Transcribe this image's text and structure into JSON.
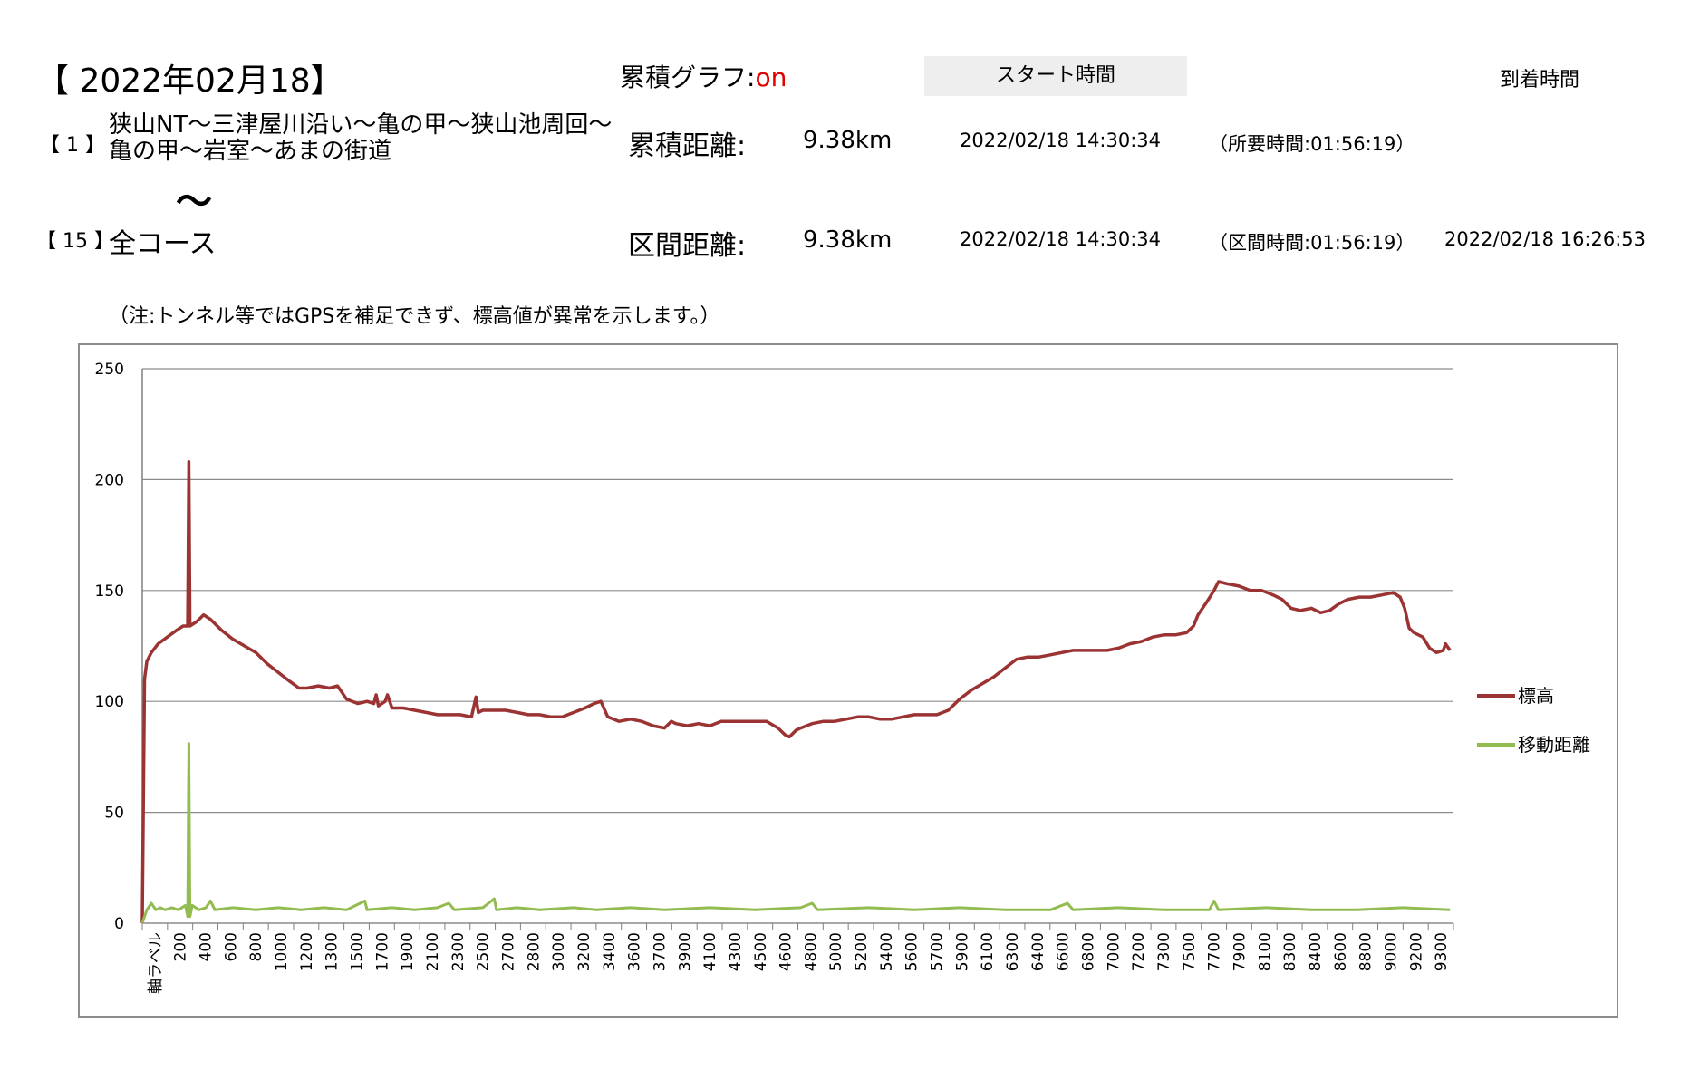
{
  "header": {
    "date_title": "【 2022年02月18】",
    "cumulative_graph_label": "累積グラフ:",
    "cumulative_graph_value": "on",
    "start_time_label": "スタート時間",
    "arrival_time_label": "到着時間"
  },
  "course_first": {
    "index": "【 1 】",
    "name": "狭山NT～三津屋川沿い～亀の甲～狭山池周回～亀の甲～岩室～あまの街道",
    "distance_label": "累積距離:",
    "distance_value": "9.38km",
    "start_time": "2022/02/18 14:30:34",
    "duration": "（所要時間:01:56:19）"
  },
  "separator": "～",
  "course_last": {
    "index": "【 15 】",
    "name": "全コース",
    "distance_label": "区間距離:",
    "distance_value": "9.38km",
    "start_time": "2022/02/18 14:30:34",
    "duration": "（区間時間:01:56:19）",
    "arrival_time": "2022/02/18 16:26:53"
  },
  "note": "（注:トンネル等ではGPSを補足できず、標高値が異常を示します。）",
  "colors": {
    "elevation": "#9b3333",
    "distance": "#92bb50",
    "grid": "#8c8c8c",
    "axis": "#7f7f7f"
  },
  "chart_data": {
    "type": "line",
    "ylim": [
      0,
      250
    ],
    "yticks": [
      0,
      50,
      100,
      150,
      200,
      250
    ],
    "grid": true,
    "legend_position": "right",
    "x_first_label": "軸ラベル",
    "categories": [
      "200",
      "400",
      "600",
      "800",
      "1000",
      "1200",
      "1300",
      "1500",
      "1700",
      "1900",
      "2100",
      "2300",
      "2500",
      "2700",
      "2800",
      "3000",
      "3200",
      "3400",
      "3600",
      "3700",
      "3900",
      "4100",
      "4300",
      "4500",
      "4600",
      "4800",
      "5000",
      "5200",
      "5400",
      "5600",
      "5700",
      "5900",
      "6100",
      "6300",
      "6400",
      "6600",
      "6800",
      "7000",
      "7200",
      "7300",
      "7500",
      "7700",
      "7900",
      "8100",
      "8300",
      "8400",
      "8600",
      "8800",
      "9000",
      "9200",
      "9300"
    ],
    "series": [
      {
        "name": "標高",
        "points": [
          [
            0,
            0
          ],
          [
            2,
            110
          ],
          [
            4,
            118
          ],
          [
            8,
            122
          ],
          [
            14,
            126
          ],
          [
            22,
            129
          ],
          [
            30,
            132
          ],
          [
            36,
            134
          ],
          [
            40,
            134
          ],
          [
            41,
            208
          ],
          [
            42,
            134
          ],
          [
            48,
            136
          ],
          [
            54,
            139
          ],
          [
            60,
            137
          ],
          [
            70,
            132
          ],
          [
            80,
            128
          ],
          [
            90,
            125
          ],
          [
            100,
            122
          ],
          [
            110,
            117
          ],
          [
            120,
            113
          ],
          [
            130,
            109
          ],
          [
            138,
            106
          ],
          [
            145,
            106
          ],
          [
            155,
            107
          ],
          [
            165,
            106
          ],
          [
            172,
            107
          ],
          [
            180,
            101
          ],
          [
            190,
            99
          ],
          [
            198,
            100
          ],
          [
            204,
            99
          ],
          [
            206,
            103
          ],
          [
            208,
            98
          ],
          [
            214,
            100
          ],
          [
            216,
            103
          ],
          [
            220,
            97
          ],
          [
            230,
            97
          ],
          [
            240,
            96
          ],
          [
            250,
            95
          ],
          [
            260,
            94
          ],
          [
            270,
            94
          ],
          [
            280,
            94
          ],
          [
            290,
            93
          ],
          [
            294,
            102
          ],
          [
            296,
            95
          ],
          [
            300,
            96
          ],
          [
            310,
            96
          ],
          [
            320,
            96
          ],
          [
            330,
            95
          ],
          [
            340,
            94
          ],
          [
            350,
            94
          ],
          [
            360,
            93
          ],
          [
            370,
            93
          ],
          [
            380,
            95
          ],
          [
            390,
            97
          ],
          [
            398,
            99
          ],
          [
            404,
            100
          ],
          [
            410,
            93
          ],
          [
            420,
            91
          ],
          [
            430,
            92
          ],
          [
            440,
            91
          ],
          [
            450,
            89
          ],
          [
            460,
            88
          ],
          [
            466,
            91
          ],
          [
            470,
            90
          ],
          [
            480,
            89
          ],
          [
            490,
            90
          ],
          [
            500,
            89
          ],
          [
            510,
            91
          ],
          [
            520,
            91
          ],
          [
            530,
            91
          ],
          [
            540,
            91
          ],
          [
            550,
            91
          ],
          [
            560,
            88
          ],
          [
            566,
            85
          ],
          [
            570,
            84
          ],
          [
            576,
            87
          ],
          [
            580,
            88
          ],
          [
            590,
            90
          ],
          [
            600,
            91
          ],
          [
            610,
            91
          ],
          [
            620,
            92
          ],
          [
            630,
            93
          ],
          [
            640,
            93
          ],
          [
            650,
            92
          ],
          [
            660,
            92
          ],
          [
            670,
            93
          ],
          [
            680,
            94
          ],
          [
            690,
            94
          ],
          [
            700,
            94
          ],
          [
            710,
            96
          ],
          [
            720,
            101
          ],
          [
            730,
            105
          ],
          [
            740,
            108
          ],
          [
            750,
            111
          ],
          [
            760,
            115
          ],
          [
            770,
            119
          ],
          [
            780,
            120
          ],
          [
            790,
            120
          ],
          [
            800,
            121
          ],
          [
            810,
            122
          ],
          [
            820,
            123
          ],
          [
            830,
            123
          ],
          [
            840,
            123
          ],
          [
            850,
            123
          ],
          [
            860,
            124
          ],
          [
            870,
            126
          ],
          [
            880,
            127
          ],
          [
            890,
            129
          ],
          [
            900,
            130
          ],
          [
            910,
            130
          ],
          [
            920,
            131
          ],
          [
            926,
            134
          ],
          [
            930,
            139
          ],
          [
            938,
            145
          ],
          [
            944,
            150
          ],
          [
            948,
            154
          ],
          [
            956,
            153
          ],
          [
            966,
            152
          ],
          [
            976,
            150
          ],
          [
            986,
            150
          ],
          [
            996,
            148
          ],
          [
            1004,
            146
          ],
          [
            1012,
            142
          ],
          [
            1020,
            141
          ],
          [
            1030,
            142
          ],
          [
            1038,
            140
          ],
          [
            1046,
            141
          ],
          [
            1054,
            144
          ],
          [
            1062,
            146
          ],
          [
            1072,
            147
          ],
          [
            1082,
            147
          ],
          [
            1092,
            148
          ],
          [
            1102,
            149
          ],
          [
            1108,
            147
          ],
          [
            1112,
            142
          ],
          [
            1116,
            133
          ],
          [
            1120,
            131
          ],
          [
            1128,
            129
          ],
          [
            1134,
            124
          ],
          [
            1140,
            122
          ],
          [
            1146,
            123
          ],
          [
            1148,
            126
          ],
          [
            1152,
            123
          ]
        ]
      },
      {
        "name": "移動距離",
        "points": [
          [
            0,
            0
          ],
          [
            4,
            6
          ],
          [
            8,
            9
          ],
          [
            12,
            6
          ],
          [
            16,
            7
          ],
          [
            20,
            6
          ],
          [
            26,
            7
          ],
          [
            32,
            6
          ],
          [
            38,
            8
          ],
          [
            40,
            3
          ],
          [
            41,
            81
          ],
          [
            42,
            3
          ],
          [
            44,
            8
          ],
          [
            50,
            6
          ],
          [
            56,
            7
          ],
          [
            60,
            10
          ],
          [
            64,
            6
          ],
          [
            80,
            7
          ],
          [
            100,
            6
          ],
          [
            120,
            7
          ],
          [
            140,
            6
          ],
          [
            160,
            7
          ],
          [
            180,
            6
          ],
          [
            196,
            10
          ],
          [
            198,
            6
          ],
          [
            220,
            7
          ],
          [
            240,
            6
          ],
          [
            260,
            7
          ],
          [
            270,
            9
          ],
          [
            275,
            6
          ],
          [
            300,
            7
          ],
          [
            310,
            11
          ],
          [
            312,
            6
          ],
          [
            330,
            7
          ],
          [
            350,
            6
          ],
          [
            380,
            7
          ],
          [
            400,
            6
          ],
          [
            430,
            7
          ],
          [
            460,
            6
          ],
          [
            500,
            7
          ],
          [
            540,
            6
          ],
          [
            580,
            7
          ],
          [
            590,
            9
          ],
          [
            595,
            6
          ],
          [
            640,
            7
          ],
          [
            680,
            6
          ],
          [
            720,
            7
          ],
          [
            760,
            6
          ],
          [
            800,
            6
          ],
          [
            815,
            9
          ],
          [
            820,
            6
          ],
          [
            860,
            7
          ],
          [
            900,
            6
          ],
          [
            940,
            6
          ],
          [
            944,
            10
          ],
          [
            948,
            6
          ],
          [
            990,
            7
          ],
          [
            1030,
            6
          ],
          [
            1070,
            6
          ],
          [
            1110,
            7
          ],
          [
            1152,
            6
          ]
        ]
      }
    ]
  }
}
